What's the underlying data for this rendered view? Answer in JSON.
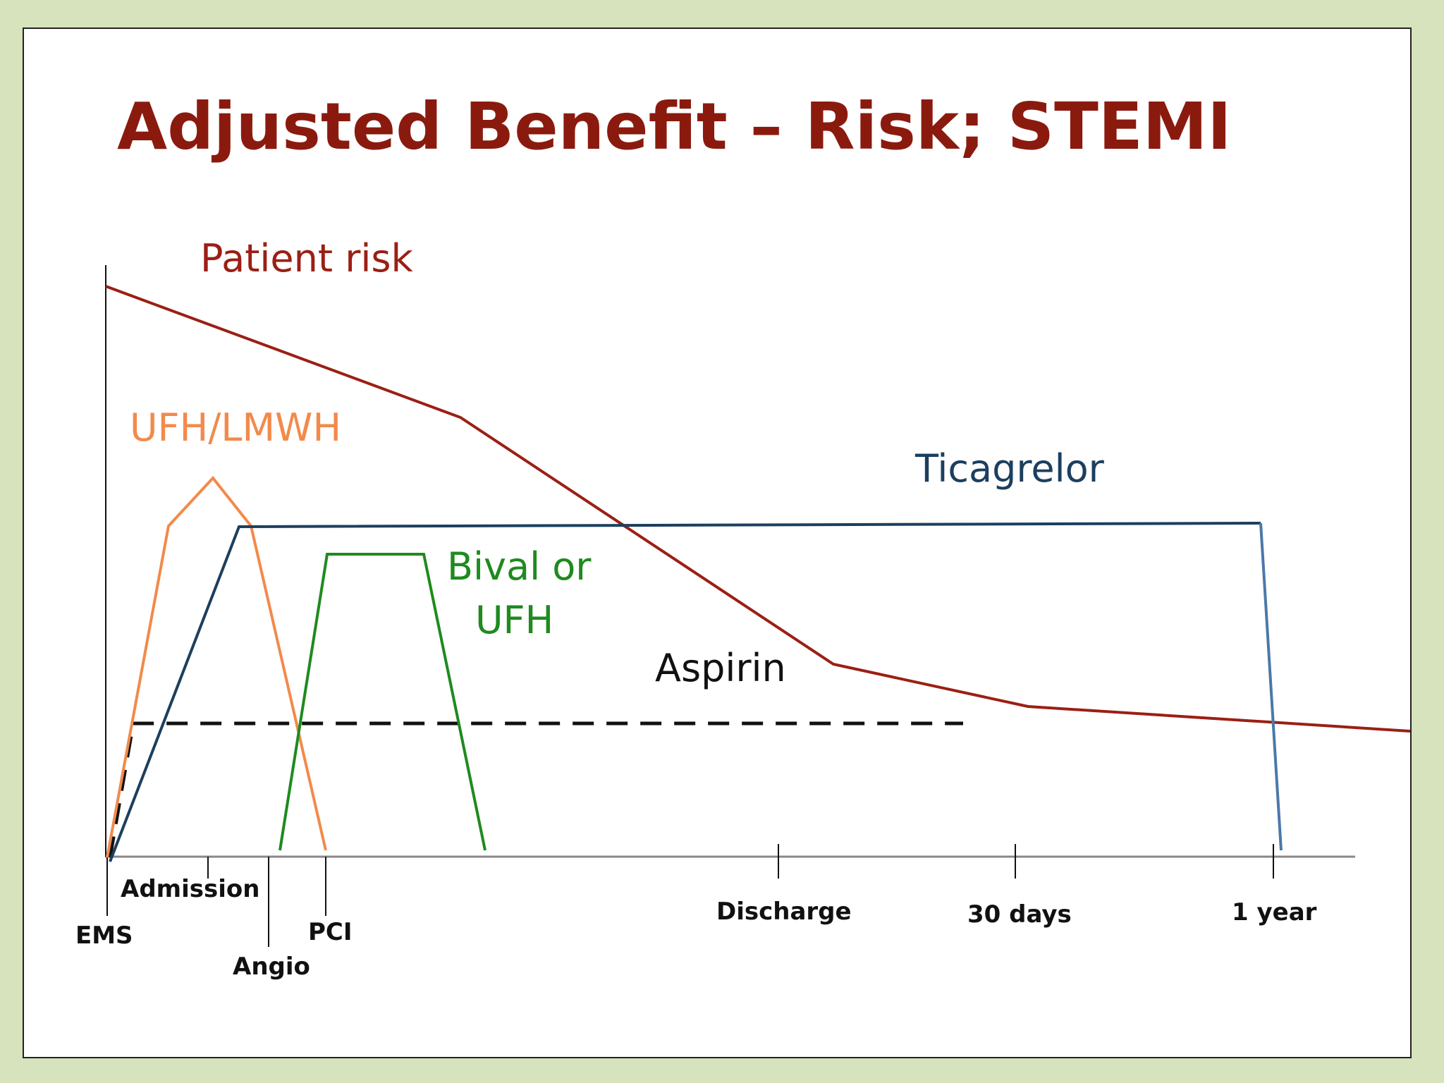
{
  "title": "Adjusted Benefit – Risk; STEMI",
  "colors": {
    "title": "#8b1a0e",
    "patient_risk": "#9b1f14",
    "ufh_lmwh": "#f28a4b",
    "ticagrelor": "#1c3f5e",
    "ticagrelor_drop": "#4a79a8",
    "bival": "#1f8a1f",
    "aspirin": "#111111",
    "axis": "#888888"
  },
  "curves": {
    "patient_risk": "Patient risk",
    "ufh_lmwh": "UFH/LMWH",
    "ticagrelor": "Ticagrelor",
    "bival_line1": "Bival or",
    "bival_line2": "UFH",
    "aspirin": "Aspirin"
  },
  "timeline": {
    "ems": "EMS",
    "admission": "Admission",
    "angio": "Angio",
    "pci": "PCI",
    "discharge": "Discharge",
    "thirty_days": "30 days",
    "one_year": "1 year"
  }
}
